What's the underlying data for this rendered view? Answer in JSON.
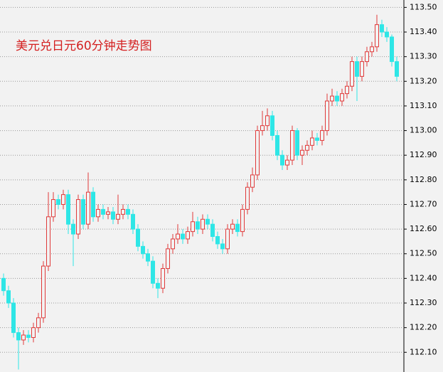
{
  "chart_data": {
    "type": "candlestick",
    "title": "美元兑日元60分钟走势图",
    "open": [
      112.4,
      112.35,
      112.3,
      112.18,
      112.15,
      112.17,
      112.16,
      112.2,
      112.24,
      112.45,
      112.65,
      112.72,
      112.7,
      112.74,
      112.62,
      112.58,
      112.72,
      112.62,
      112.75,
      112.65,
      112.68,
      112.66,
      112.67,
      112.64,
      112.66,
      112.68,
      112.66,
      112.6,
      112.53,
      112.5,
      112.47,
      112.38,
      112.36,
      112.44,
      112.52,
      112.56,
      112.58,
      112.56,
      112.59,
      112.63,
      112.6,
      112.64,
      112.62,
      112.57,
      112.54,
      112.52,
      112.6,
      112.62,
      112.59,
      112.68,
      112.77,
      112.82,
      113.0,
      113.02,
      113.06,
      112.98,
      112.9,
      112.86,
      112.88,
      113.0,
      112.9,
      112.92,
      112.94,
      112.97,
      112.96,
      113.0,
      113.12,
      113.14,
      113.12,
      113.15,
      113.18,
      113.28,
      113.22,
      113.28,
      113.32,
      113.34,
      113.43,
      113.4,
      113.38,
      113.28
    ],
    "high": [
      112.42,
      112.37,
      112.32,
      112.2,
      112.19,
      112.19,
      112.22,
      112.26,
      112.47,
      112.75,
      112.75,
      112.74,
      112.76,
      112.76,
      112.64,
      112.74,
      112.74,
      112.83,
      112.77,
      112.7,
      112.7,
      112.69,
      112.69,
      112.74,
      112.7,
      112.7,
      112.68,
      112.62,
      112.55,
      112.52,
      112.49,
      112.4,
      112.46,
      112.54,
      112.58,
      112.62,
      112.6,
      112.61,
      112.67,
      112.65,
      112.66,
      112.66,
      112.64,
      112.59,
      112.56,
      112.62,
      112.64,
      112.64,
      112.7,
      112.79,
      112.85,
      113.02,
      113.08,
      113.09,
      113.08,
      113.0,
      112.92,
      112.9,
      113.02,
      113.01,
      112.94,
      112.96,
      113.0,
      112.99,
      113.02,
      113.15,
      113.17,
      113.16,
      113.17,
      113.2,
      113.3,
      113.3,
      113.3,
      113.34,
      113.36,
      113.47,
      113.45,
      113.42,
      113.39,
      113.3
    ],
    "low": [
      112.33,
      112.28,
      112.16,
      112.03,
      112.13,
      112.14,
      112.14,
      112.18,
      112.22,
      112.43,
      112.63,
      112.68,
      112.68,
      112.58,
      112.45,
      112.56,
      112.6,
      112.6,
      112.63,
      112.63,
      112.64,
      112.64,
      112.62,
      112.62,
      112.64,
      112.64,
      112.58,
      112.51,
      112.48,
      112.45,
      112.36,
      112.32,
      112.34,
      112.42,
      112.5,
      112.54,
      112.54,
      112.54,
      112.57,
      112.58,
      112.58,
      112.6,
      112.55,
      112.52,
      112.5,
      112.5,
      112.58,
      112.57,
      112.57,
      112.66,
      112.75,
      112.8,
      112.98,
      113.0,
      112.96,
      112.88,
      112.84,
      112.84,
      112.86,
      112.88,
      112.86,
      112.9,
      112.92,
      112.94,
      112.94,
      112.98,
      113.1,
      113.1,
      113.1,
      113.13,
      113.16,
      113.12,
      113.2,
      113.26,
      113.3,
      113.32,
      113.38,
      113.36,
      113.26,
      113.2
    ],
    "close": [
      112.35,
      112.3,
      112.18,
      112.15,
      112.17,
      112.16,
      112.2,
      112.24,
      112.45,
      112.65,
      112.72,
      112.7,
      112.74,
      112.62,
      112.58,
      112.72,
      112.62,
      112.75,
      112.65,
      112.68,
      112.66,
      112.67,
      112.64,
      112.66,
      112.68,
      112.66,
      112.6,
      112.53,
      112.5,
      112.47,
      112.38,
      112.36,
      112.44,
      112.52,
      112.56,
      112.58,
      112.56,
      112.59,
      112.63,
      112.6,
      112.64,
      112.62,
      112.57,
      112.54,
      112.52,
      112.6,
      112.62,
      112.59,
      112.68,
      112.77,
      112.82,
      113.0,
      113.02,
      113.06,
      112.98,
      112.9,
      112.86,
      112.88,
      113.0,
      112.9,
      112.92,
      112.94,
      112.97,
      112.96,
      113.0,
      113.12,
      113.14,
      113.12,
      113.15,
      113.18,
      113.28,
      113.22,
      113.28,
      113.32,
      113.34,
      113.43,
      113.4,
      113.38,
      113.28,
      113.22
    ],
    "up_color": "#e03a3a",
    "down_color": "#2ee6e6",
    "ylim": [
      112.02,
      113.53
    ],
    "yticks": [
      {
        "value": 112.1,
        "label": "112.10"
      },
      {
        "value": 112.2,
        "label": "112.20"
      },
      {
        "value": 112.3,
        "label": "112.30"
      },
      {
        "value": 112.4,
        "label": "112.40"
      },
      {
        "value": 112.5,
        "label": "112.50"
      },
      {
        "value": 112.6,
        "label": "112.60"
      },
      {
        "value": 112.7,
        "label": "112.70"
      },
      {
        "value": 112.8,
        "label": "112.80"
      },
      {
        "value": 112.9,
        "label": "112.90"
      },
      {
        "value": 113.0,
        "label": "113.00"
      },
      {
        "value": 113.1,
        "label": "113.10"
      },
      {
        "value": 113.2,
        "label": "113.20"
      },
      {
        "value": 113.3,
        "label": "113.30"
      },
      {
        "value": 113.4,
        "label": "113.40"
      },
      {
        "value": 113.5,
        "label": "113.50"
      }
    ],
    "grid": true
  }
}
